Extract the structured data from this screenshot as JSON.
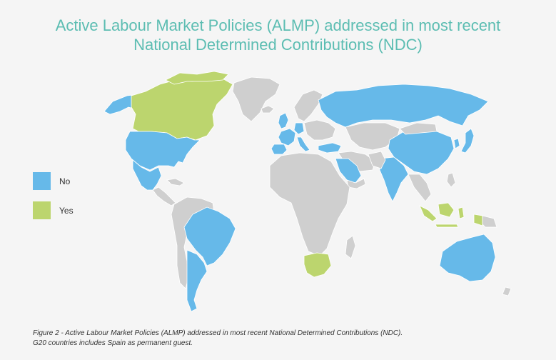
{
  "title": {
    "line1": "Active Labour Market Policies (ALMP) addressed in most recent",
    "line2": "National Determined Contributions (NDC)"
  },
  "legend": [
    {
      "label": "No",
      "color": "#66b9e9"
    },
    {
      "label": "Yes",
      "color": "#bcd56e"
    }
  ],
  "colors": {
    "other_countries": "#cfcfcf",
    "background": "#f5f5f5",
    "title": "#5cbdb2"
  },
  "countries": {
    "no": [
      "United States",
      "Mexico",
      "Brazil",
      "Argentina",
      "United Kingdom",
      "France",
      "Germany",
      "Italy",
      "Spain",
      "Turkey",
      "Russia",
      "Saudi Arabia",
      "India",
      "China",
      "Japan",
      "South Korea",
      "Australia"
    ],
    "yes": [
      "Canada",
      "South Africa",
      "Indonesia"
    ]
  },
  "caption": {
    "line1": "Figure 2 - Active Labour Market Policies (ALMP) addressed in most recent National Determined Contributions (NDC).",
    "line2": "G20 countries includes Spain as permanent guest."
  }
}
